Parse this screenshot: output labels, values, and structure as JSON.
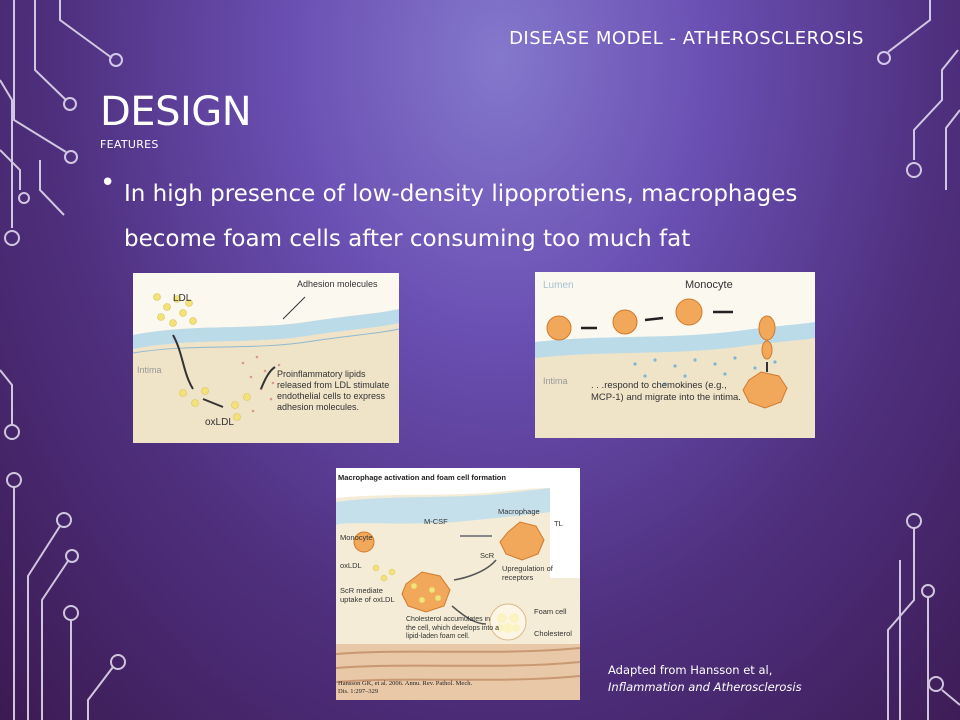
{
  "slide": {
    "header": "DISEASE MODEL - ATHEROSCLEROSIS",
    "title": "DESIGN",
    "subtitle": "FEATURES",
    "bullet": "In high presence of low-density lipoprotiens, macrophages become foam cells after consuming too much fat",
    "credit_line1": "Adapted from Hansson et al,",
    "credit_line2": "Inflammation and Atherosclerosis"
  },
  "figure1": {
    "ldl": "LDL",
    "adhesion": "Adhesion molecules",
    "intima": "Intima",
    "oxldl": "oxLDL",
    "caption": "Proinflammatory lipids released from LDL stimulate endothelial cells to express adhesion molecules."
  },
  "figure2": {
    "lumen": "Lumen",
    "monocyte": "Monocyte",
    "intima": "Intima",
    "caption": ". . .respond to chemokines (e.g., MCP-1) and migrate into the intima."
  },
  "figure3": {
    "title": "Macrophage activation and foam cell formation",
    "mcsf": "M-CSF",
    "macrophage": "Macrophage",
    "monocyte": "Monocyte",
    "scr": "ScR",
    "oxldl": "oxLDL",
    "upregulation": "Upregulation of receptors",
    "scr_mediate": "ScR mediate uptake of oxLDL",
    "foam_cell": "Foam cell",
    "cholesterol_note": "Cholesterol accumulates in the cell, which develops into a lipid-laden foam cell.",
    "cholesterol": "Cholesterol",
    "citation": "Hansson GK, et al. 2006. Annu. Rev. Pathol. Mech. Dis. 1:297–329",
    "tl": "TL"
  },
  "colors": {
    "accent": "#ffffff",
    "cell": "#f2a85a",
    "ldl": "#f3e27a"
  },
  "icons": [
    "circuit-decoration"
  ]
}
